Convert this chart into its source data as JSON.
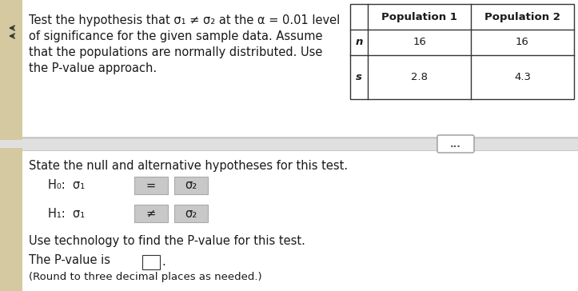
{
  "bg_top": "#e8e8e8",
  "bg_bottom": "#f0f0f0",
  "white": "#ffffff",
  "left_strip_color": "#d4d4d4",
  "title_line1": "Test the hypothesis that σ₁ ≠ σ₂ at the α = 0.01 level",
  "title_line2": "of significance for the given sample data. Assume",
  "title_line3": "that the populations are normally distributed. Use",
  "title_line4": "the P-value approach.",
  "table_col1": "",
  "table_col2": "Population 1",
  "table_col3": "Population 2",
  "row1_label": "n",
  "row1_val1": "16",
  "row1_val2": "16",
  "row2_label": "s",
  "row2_val1": "2.8",
  "row2_val2": "4.3",
  "dots": "...",
  "state_text": "State the null and alternative hypotheses for this test.",
  "h0_left": "H₀:  σ₁",
  "h0_mid": "=",
  "h0_right": "σ₂",
  "h1_left": "H₁:  σ₁",
  "h1_mid": "≠",
  "h1_right": "σ₂",
  "use_tech": "Use technology to find the P-value for this test.",
  "pvalue_text": "The P-value is",
  "round_text": "(Round to three decimal places as needed.)",
  "box_gray": "#c8c8c8",
  "box_border": "#aaaaaa",
  "table_border": "#333333",
  "font_size": 10.5,
  "font_size_small": 9.5
}
